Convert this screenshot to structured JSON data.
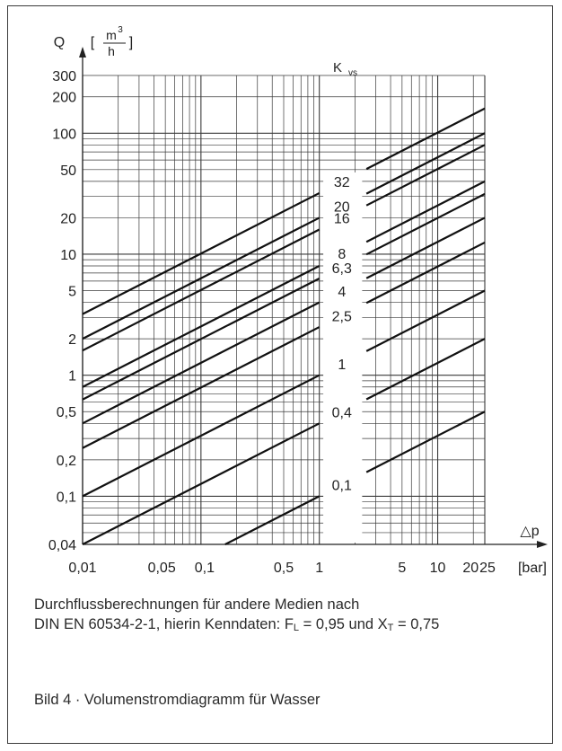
{
  "chart_data": {
    "type": "line",
    "title": "",
    "xlabel": "△p",
    "x_unit": "[bar]",
    "ylabel": "Q",
    "y_unit_numerator": "m",
    "y_unit_exponent": "3",
    "y_unit_denominator": "h",
    "y_unit_open": "[",
    "y_unit_close": "]",
    "x_scale": "log",
    "y_scale": "log",
    "xlim": [
      0.01,
      25
    ],
    "ylim": [
      0.04,
      300
    ],
    "grid": true,
    "x_ticks": [
      {
        "value": 0.01,
        "label": "0,01"
      },
      {
        "value": 0.05,
        "label": "0,05"
      },
      {
        "value": 0.1,
        "label": "0,1"
      },
      {
        "value": 0.5,
        "label": "0,5"
      },
      {
        "value": 1,
        "label": "1"
      },
      {
        "value": 5,
        "label": "5"
      },
      {
        "value": 10,
        "label": "10"
      },
      {
        "value": 20,
        "label": "20"
      },
      {
        "value": 25,
        "label": "25"
      }
    ],
    "y_ticks": [
      {
        "value": 0.04,
        "label": "0,04"
      },
      {
        "value": 0.1,
        "label": "0,1"
      },
      {
        "value": 0.2,
        "label": "0,2"
      },
      {
        "value": 0.5,
        "label": "0,5"
      },
      {
        "value": 1,
        "label": "1"
      },
      {
        "value": 2,
        "label": "2"
      },
      {
        "value": 5,
        "label": "5"
      },
      {
        "value": 10,
        "label": "10"
      },
      {
        "value": 20,
        "label": "20"
      },
      {
        "value": 50,
        "label": "50"
      },
      {
        "value": 100,
        "label": "100"
      },
      {
        "value": 200,
        "label": "200"
      },
      {
        "value": 300,
        "label": "300"
      }
    ],
    "series_label_title": "K",
    "series_label_title_sub": "vs",
    "series": [
      {
        "name": "32",
        "kvs": 32
      },
      {
        "name": "20",
        "kvs": 20
      },
      {
        "name": "16",
        "kvs": 16
      },
      {
        "name": "8",
        "kvs": 8
      },
      {
        "name": "6,3",
        "kvs": 6.3
      },
      {
        "name": "4",
        "kvs": 4
      },
      {
        "name": "2,5",
        "kvs": 2.5
      },
      {
        "name": "1",
        "kvs": 1
      },
      {
        "name": "0,4",
        "kvs": 0.4
      },
      {
        "name": "0,1",
        "kvs": 0.1
      }
    ]
  },
  "notes": {
    "line1": "Durchflussberechnungen für andere Medien nach",
    "line2": "DIN EN 60534-2-1, hierin Kenndaten: F",
    "fl_sub": "L",
    "mid": " = 0,95 und X",
    "xt_sub": "T",
    "end": " = 0,75",
    "figure_caption": "Bild 4 · Volumenstromdiagramm für Wasser"
  }
}
